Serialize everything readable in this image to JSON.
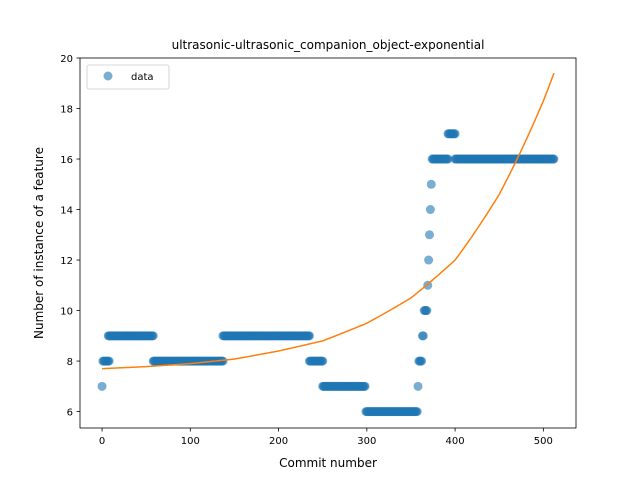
{
  "chart_data": {
    "type": "scatter",
    "title": "ultrasonic-ultrasonic_companion_object-exponential",
    "xlabel": "Commit number",
    "ylabel": "Number of instance of a feature",
    "xlim": [
      -25,
      537
    ],
    "ylim": [
      5.35,
      20
    ],
    "xticks": [
      0,
      100,
      200,
      300,
      400,
      500
    ],
    "yticks": [
      6,
      8,
      10,
      12,
      14,
      16,
      18,
      20
    ],
    "grid": false,
    "legend": {
      "position": "top-left",
      "entries": [
        "data"
      ]
    },
    "colors": {
      "points": "#1f77b4",
      "fit": "#ff7f0e"
    },
    "series": [
      {
        "name": "data",
        "kind": "points",
        "segments": [
          {
            "x_start": 0,
            "x_end": 0,
            "y": 7
          },
          {
            "x_start": 1,
            "x_end": 8,
            "y": 8
          },
          {
            "x_start": 7,
            "x_end": 58,
            "y": 9
          },
          {
            "x_start": 58,
            "x_end": 137,
            "y": 8
          },
          {
            "x_start": 137,
            "x_end": 235,
            "y": 9
          },
          {
            "x_start": 235,
            "x_end": 250,
            "y": 8
          },
          {
            "x_start": 250,
            "x_end": 298,
            "y": 7
          },
          {
            "x_start": 299,
            "x_end": 357,
            "y": 6
          },
          {
            "x_start": 358,
            "x_end": 358,
            "y": 7
          },
          {
            "x_start": 359,
            "x_end": 362,
            "y": 8
          },
          {
            "x_start": 363,
            "x_end": 364,
            "y": 9
          },
          {
            "x_start": 365,
            "x_end": 368,
            "y": 10
          },
          {
            "x_start": 369,
            "x_end": 369,
            "y": 11
          },
          {
            "x_start": 370,
            "x_end": 370,
            "y": 12
          },
          {
            "x_start": 371,
            "x_end": 371,
            "y": 13
          },
          {
            "x_start": 372,
            "x_end": 372,
            "y": 14
          },
          {
            "x_start": 373,
            "x_end": 373,
            "y": 15
          },
          {
            "x_start": 374,
            "x_end": 392,
            "y": 16
          },
          {
            "x_start": 392,
            "x_end": 400,
            "y": 17
          },
          {
            "x_start": 400,
            "x_end": 512,
            "y": 16
          }
        ]
      },
      {
        "name": "",
        "kind": "line",
        "x": [
          0,
          50,
          100,
          150,
          200,
          250,
          300,
          350,
          400,
          450,
          500,
          512
        ],
        "y": [
          7.7,
          7.78,
          7.9,
          8.08,
          8.4,
          8.8,
          9.5,
          10.5,
          12.0,
          14.6,
          18.3,
          19.4
        ]
      }
    ]
  }
}
